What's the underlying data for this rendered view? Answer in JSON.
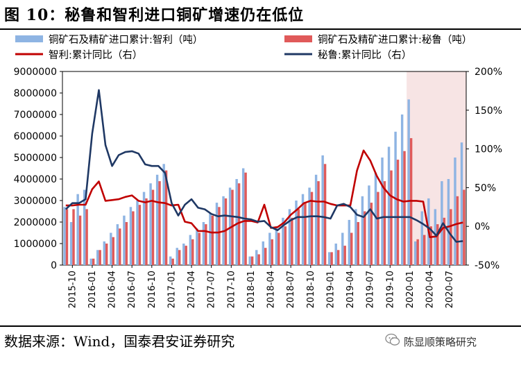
{
  "title": "图 10：秘鲁和智利进口铜矿增速仍在低位",
  "source": "数据来源：Wind，国泰君安证券研究",
  "watermark": "陈显顺策略研究",
  "chart_data": {
    "type": "bar+line",
    "legend": [
      {
        "name": "铜矿石及精矿进口累计:智利（吨）",
        "kind": "bar",
        "color": "#8EB4E3"
      },
      {
        "name": "铜矿石及精矿进口累计:秘鲁（吨）",
        "kind": "bar",
        "color": "#E05A5A"
      },
      {
        "name": "智利:累计同比（右）",
        "kind": "line",
        "color": "#C00000"
      },
      {
        "name": "秘鲁:累计同比（右）",
        "kind": "line",
        "color": "#1F3864"
      }
    ],
    "x_tick_labels": [
      "2015-10",
      "2016-01",
      "2016-04",
      "2016-07",
      "2016-10",
      "2017-01",
      "2017-04",
      "2017-07",
      "2017-10",
      "2018-01",
      "2018-04",
      "2018-07",
      "2018-10",
      "2019-01",
      "2019-04",
      "2019-07",
      "2019-10",
      "2020-01",
      "2020-04",
      "2020-07"
    ],
    "y_left": {
      "min": 0,
      "max": 9000000,
      "step": 1000000,
      "ticks": [
        "0",
        "1000000",
        "2000000",
        "3000000",
        "4000000",
        "5000000",
        "6000000",
        "7000000",
        "8000000",
        "9000000"
      ]
    },
    "y_right": {
      "min": -50,
      "max": 200,
      "step": 50,
      "ticks": [
        "-50%",
        "0%",
        "50%",
        "100%",
        "150%",
        "200%"
      ]
    },
    "shade_start_month": "2020-01",
    "months": [
      "2015-09",
      "2015-10",
      "2015-11",
      "2015-12",
      "2016-01",
      "2016-02",
      "2016-03",
      "2016-04",
      "2016-05",
      "2016-06",
      "2016-07",
      "2016-08",
      "2016-09",
      "2016-10",
      "2016-11",
      "2016-12",
      "2017-01",
      "2017-02",
      "2017-03",
      "2017-04",
      "2017-05",
      "2017-06",
      "2017-07",
      "2017-08",
      "2017-09",
      "2017-10",
      "2017-11",
      "2017-12",
      "2018-01",
      "2018-02",
      "2018-03",
      "2018-04",
      "2018-05",
      "2018-06",
      "2018-07",
      "2018-08",
      "2018-09",
      "2018-10",
      "2018-11",
      "2018-12",
      "2019-01",
      "2019-02",
      "2019-03",
      "2019-04",
      "2019-05",
      "2019-06",
      "2019-07",
      "2019-08",
      "2019-09",
      "2019-10",
      "2019-11",
      "2019-12",
      "2020-01",
      "2020-02",
      "2020-03",
      "2020-04",
      "2020-05",
      "2020-06",
      "2020-07",
      "2020-08",
      "2020-09"
    ],
    "series": [
      {
        "name": "铜矿石及精矿进口累计:智利（吨）",
        "type": "bar",
        "axis": "left",
        "values": [
          2700000,
          2000000,
          3300000,
          3500000,
          300000,
          700000,
          1100000,
          1500000,
          1900000,
          2300000,
          2700000,
          3000000,
          3400000,
          3800000,
          4200000,
          4700000,
          400000,
          800000,
          1000000,
          1400000,
          1700000,
          2000000,
          2400000,
          2900000,
          3200000,
          3600000,
          4000000,
          4500000,
          400000,
          700000,
          1100000,
          1500000,
          1800000,
          2200000,
          2600000,
          3000000,
          3300000,
          3600000,
          4200000,
          5100000,
          600000,
          1000000,
          1500000,
          2100000,
          2600000,
          3200000,
          3700000,
          4300000,
          5000000,
          5500000,
          6200000,
          7000000,
          7700000,
          1100000,
          2500000,
          3100000,
          2600000,
          3900000,
          4000000,
          5000000,
          5700000
        ]
      },
      {
        "name": "铜矿石及精矿进口累计:秘鲁（吨）",
        "type": "bar",
        "axis": "left",
        "values": [
          2600000,
          2600000,
          2300000,
          2600000,
          300000,
          700000,
          1000000,
          1300000,
          1700000,
          2000000,
          2500000,
          2800000,
          3100000,
          3500000,
          3900000,
          4400000,
          300000,
          700000,
          900000,
          1200000,
          1500000,
          1900000,
          2300000,
          2700000,
          3100000,
          3500000,
          3800000,
          4300000,
          400000,
          500000,
          800000,
          1200000,
          1500000,
          1800000,
          2200000,
          2600000,
          2900000,
          3400000,
          3900000,
          4700000,
          600000,
          700000,
          900000,
          1500000,
          2000000,
          2500000,
          2900000,
          3400000,
          3900000,
          4400000,
          4900000,
          5300000,
          5900000,
          1200000,
          1400000,
          1800000,
          1900000,
          2200000,
          2600000,
          3200000,
          3500000
        ]
      },
      {
        "name": "智利:累计同比（右）",
        "type": "line",
        "axis": "right",
        "values": [
          27,
          27,
          28,
          28,
          48,
          58,
          33,
          34,
          35,
          38,
          40,
          33,
          31,
          33,
          31,
          30,
          27,
          28,
          6,
          4,
          -6,
          -6,
          -8,
          -8,
          -6,
          -1,
          4,
          7,
          7,
          5,
          28,
          -2,
          -1,
          5,
          15,
          22,
          30,
          33,
          32,
          32,
          29,
          27,
          27,
          27,
          72,
          98,
          85,
          65,
          50,
          40,
          35,
          32,
          33,
          33,
          32,
          -14,
          -13,
          -2,
          0,
          3,
          5
        ]
      },
      {
        "name": "秘鲁:累计同比（右）",
        "type": "line",
        "axis": "right",
        "values": [
          22,
          30,
          30,
          35,
          120,
          176,
          105,
          78,
          92,
          96,
          97,
          94,
          80,
          78,
          78,
          69,
          30,
          14,
          28,
          35,
          24,
          22,
          16,
          13,
          14,
          13,
          12,
          10,
          9,
          6,
          7,
          -1,
          -5,
          2,
          8,
          12,
          12,
          13,
          13,
          12,
          10,
          27,
          29,
          25,
          15,
          12,
          22,
          10,
          12,
          12,
          12,
          12,
          12,
          8,
          3,
          -3,
          -12,
          4,
          -9,
          -20,
          -19
        ]
      }
    ]
  }
}
